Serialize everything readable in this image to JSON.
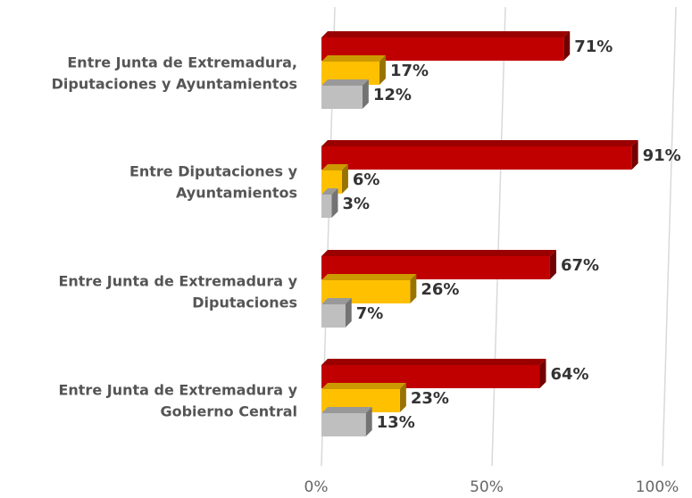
{
  "chart_data": {
    "type": "bar",
    "orientation": "horizontal",
    "categories": [
      [
        "Entre Junta de Extremadura,",
        "Diputaciones y Ayuntamientos"
      ],
      [
        "Entre Diputaciones y",
        "Ayuntamientos"
      ],
      [
        "Entre Junta de Extremadura y",
        "Diputaciones"
      ],
      [
        "Entre Junta de Extremadura y",
        "Gobierno Central"
      ]
    ],
    "series": [
      {
        "color": "#c00000",
        "values": [
          71,
          91,
          67,
          64
        ],
        "value_labels": [
          "71%",
          "91%",
          "67%",
          "64%"
        ]
      },
      {
        "color": "#ffc000",
        "values": [
          17,
          6,
          26,
          23
        ],
        "value_labels": [
          "17%",
          "6%",
          "26%",
          "23%"
        ]
      },
      {
        "color": "#bfbfbf",
        "values": [
          12,
          3,
          7,
          13
        ],
        "value_labels": [
          "12%",
          "3%",
          "7%",
          "13%"
        ]
      }
    ],
    "xlim": [
      0,
      100
    ],
    "xticks": [
      {
        "value": 0,
        "label": "0%"
      },
      {
        "value": 50,
        "label": "50%"
      },
      {
        "value": 100,
        "label": "100%"
      }
    ],
    "grid": true
  }
}
